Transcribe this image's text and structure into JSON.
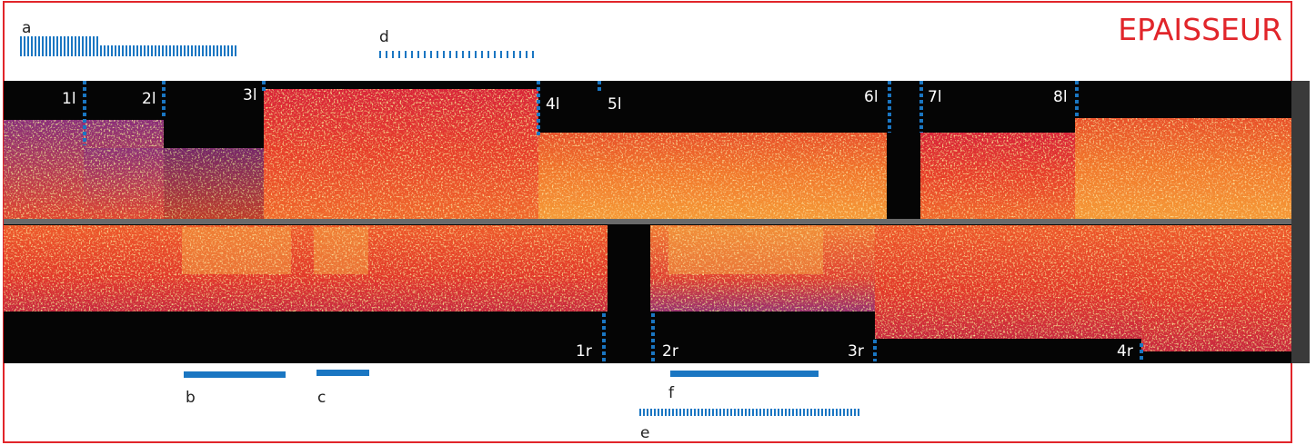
{
  "title": "EPAISSEUR",
  "legend_marks": {
    "a": "a",
    "b": "b",
    "c": "c",
    "d": "d",
    "e": "e",
    "f": "f"
  },
  "top_cuts": [
    "1l",
    "2l",
    "3l",
    "4l",
    "5l",
    "6l",
    "7l",
    "8l"
  ],
  "bottom_cuts": [
    "1r",
    "2r",
    "3r",
    "4r"
  ]
}
